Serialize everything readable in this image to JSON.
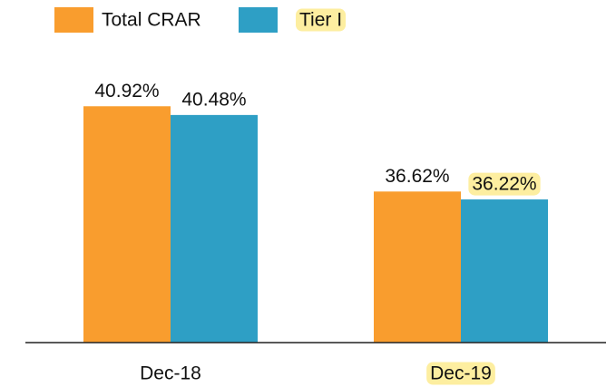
{
  "chart_data": {
    "type": "bar",
    "categories": [
      "Dec-18",
      "Dec-19"
    ],
    "series": [
      {
        "name": "Total CRAR",
        "color": "#f99d2e",
        "values": [
          40.92,
          36.62
        ],
        "value_labels": [
          "40.92%",
          "36.62%"
        ]
      },
      {
        "name": "Tier I",
        "color": "#2e9fc5",
        "values": [
          40.48,
          36.22
        ],
        "value_labels": [
          "40.48%",
          "36.22%"
        ]
      }
    ],
    "ylim": [
      29,
      45
    ],
    "legend": "top-left"
  }
}
